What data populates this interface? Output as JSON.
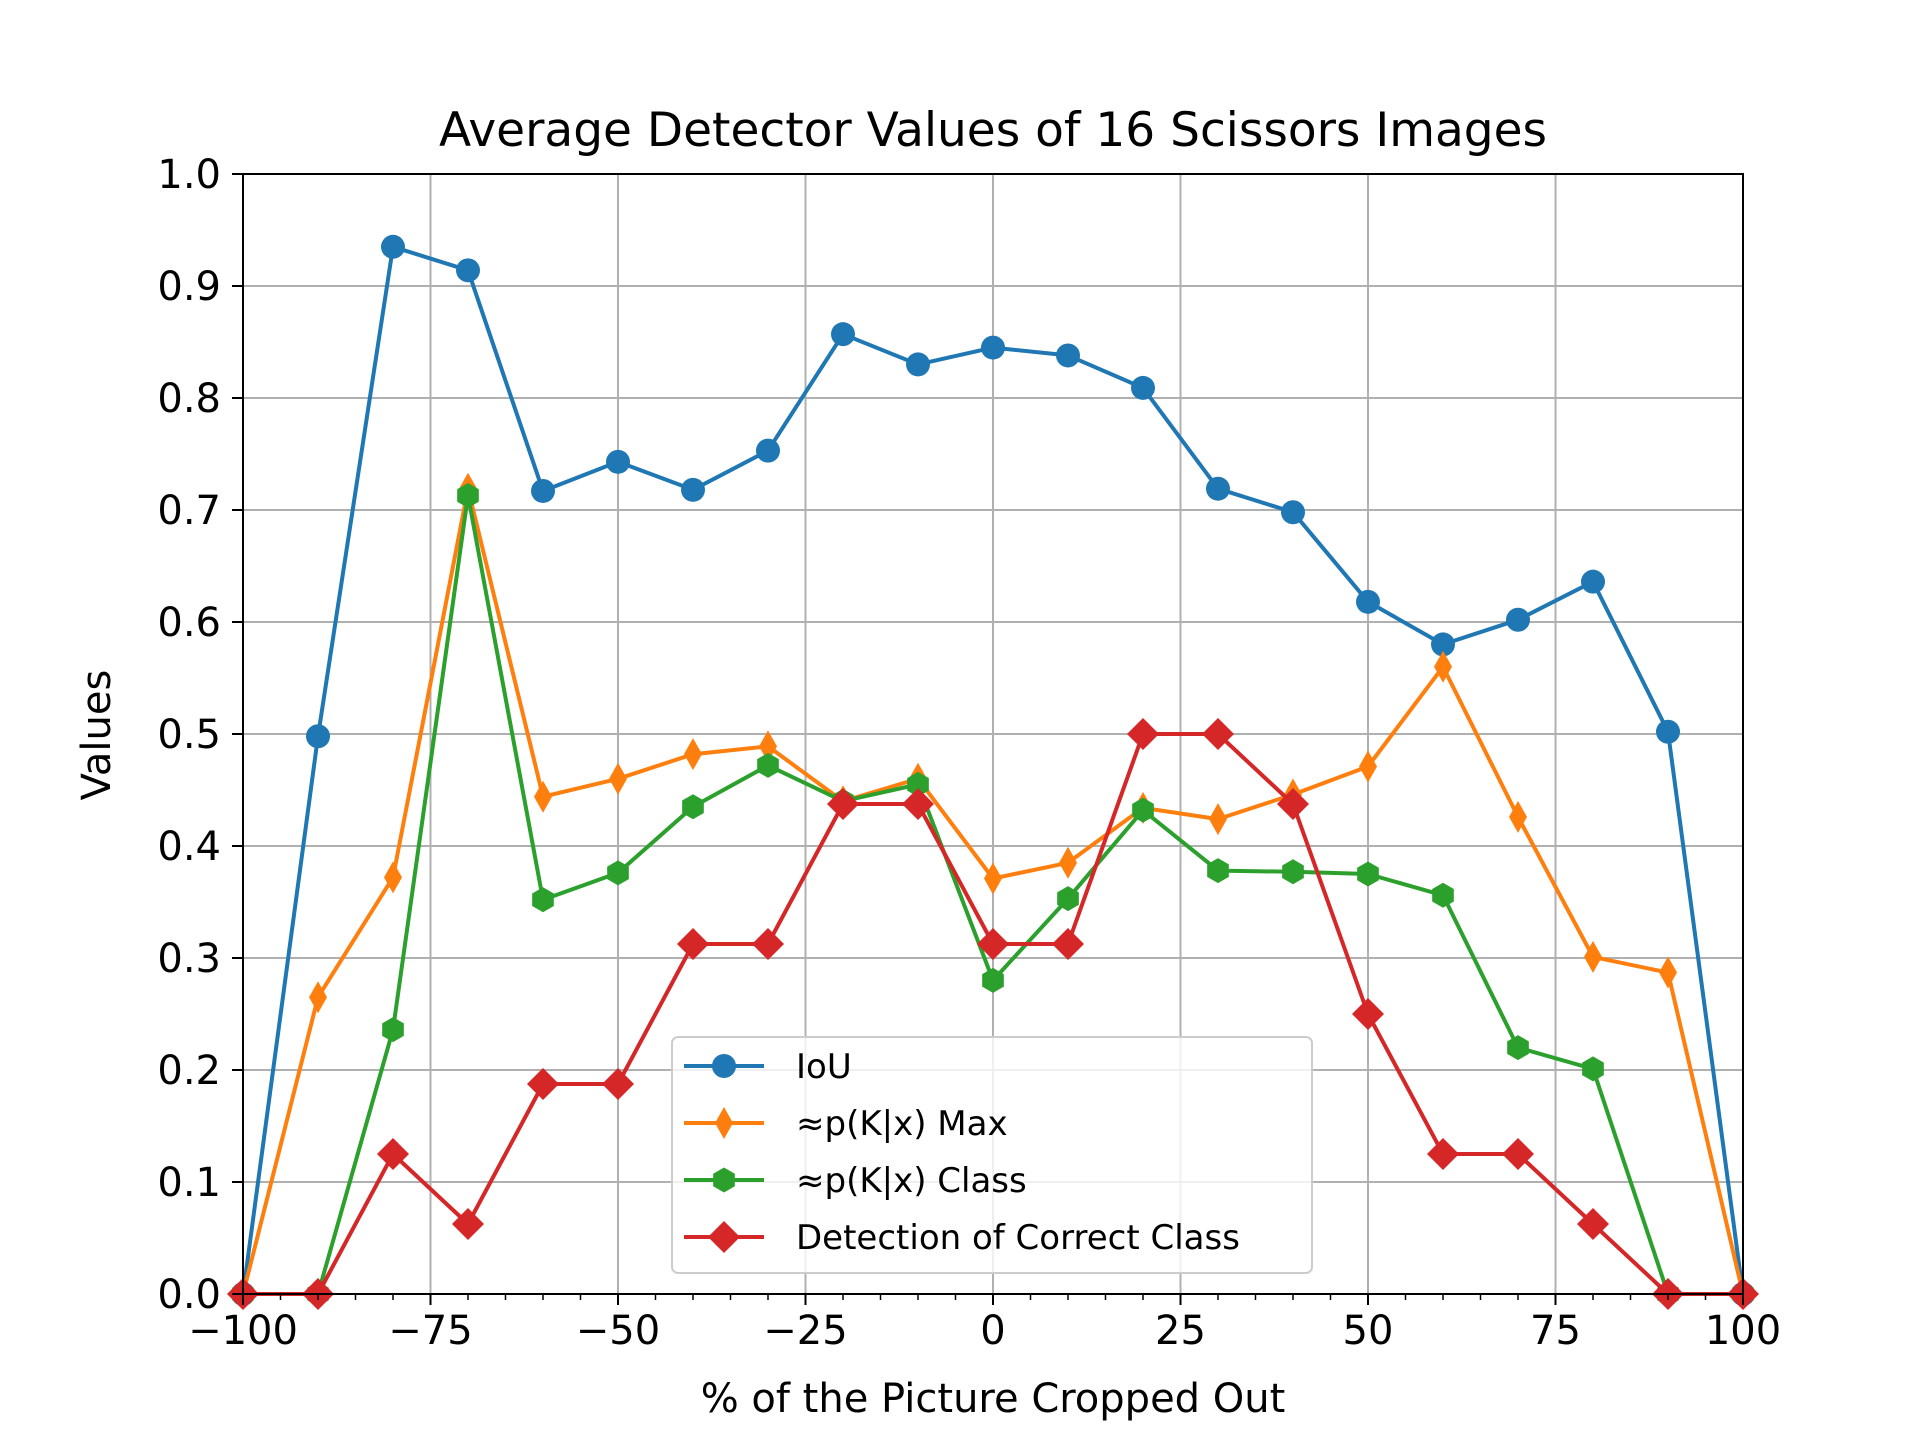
{
  "chart_data": {
    "type": "line",
    "title": "Average Detector Values of 16 Scissors Images",
    "xlabel": "% of the Picture Cropped Out",
    "ylabel": "Values",
    "xlim": [
      -100,
      100
    ],
    "ylim": [
      0,
      1.0
    ],
    "grid": true,
    "legend_position": "lower-center",
    "x_ticks": [
      -100,
      -75,
      -50,
      -25,
      0,
      25,
      50,
      75,
      100
    ],
    "x_tick_labels": [
      "−100",
      "−75",
      "−50",
      "−25",
      "0",
      "25",
      "50",
      "75",
      "100"
    ],
    "y_ticks": [
      0,
      0.1,
      0.2,
      0.3,
      0.4,
      0.5,
      0.6,
      0.7,
      0.8,
      0.9,
      1.0
    ],
    "y_tick_labels": [
      "0.0",
      "0.1",
      "0.2",
      "0.3",
      "0.4",
      "0.5",
      "0.6",
      "0.7",
      "0.8",
      "0.9",
      "1.0"
    ],
    "x": [
      -100,
      -90,
      -80,
      -70,
      -60,
      -50,
      -40,
      -30,
      -20,
      -10,
      0,
      10,
      20,
      30,
      40,
      50,
      60,
      70,
      80,
      90,
      100
    ],
    "series": [
      {
        "name": "IoU",
        "color": "#1f77b4",
        "marker": "circle",
        "values": [
          0.0,
          0.498,
          0.935,
          0.914,
          0.717,
          0.743,
          0.718,
          0.753,
          0.857,
          0.83,
          0.845,
          0.838,
          0.809,
          0.719,
          0.698,
          0.618,
          0.58,
          0.602,
          0.636,
          0.502,
          0.0
        ]
      },
      {
        "name": "≈p(K|x) Max",
        "color": "#ff7f0e",
        "marker": "thin-diamond",
        "values": [
          0.0,
          0.265,
          0.372,
          0.719,
          0.444,
          0.46,
          0.482,
          0.489,
          0.44,
          0.46,
          0.371,
          0.385,
          0.434,
          0.424,
          0.446,
          0.471,
          0.56,
          0.426,
          0.301,
          0.287,
          0.0
        ]
      },
      {
        "name": "≈p(K|x) Class",
        "color": "#2ca02c",
        "marker": "hexagon",
        "values": [
          0.0,
          0.0,
          0.236,
          0.713,
          0.352,
          0.376,
          0.435,
          0.472,
          0.44,
          0.455,
          0.28,
          0.353,
          0.432,
          0.378,
          0.377,
          0.375,
          0.356,
          0.22,
          0.201,
          0.0,
          0.0
        ]
      },
      {
        "name": "Detection of Correct Class",
        "color": "#d62728",
        "marker": "diamond",
        "values": [
          0.0,
          0.0,
          0.125,
          0.0625,
          0.1875,
          0.1875,
          0.3125,
          0.3125,
          0.4375,
          0.4375,
          0.3125,
          0.3125,
          0.5,
          0.5,
          0.4375,
          0.25,
          0.125,
          0.125,
          0.0625,
          0.0,
          0.0
        ]
      }
    ]
  }
}
